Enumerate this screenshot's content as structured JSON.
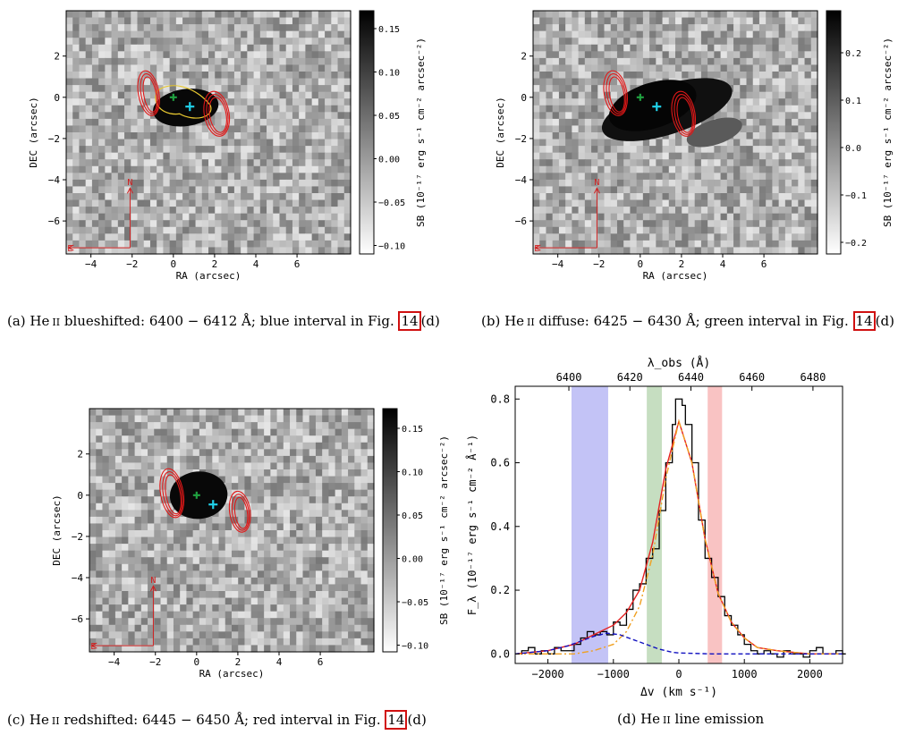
{
  "maps": [
    {
      "id": "a",
      "xlabel": "RA (arcsec)",
      "ylabel": "DEC (arcsec)",
      "xticks": [
        "−4",
        "−2",
        "0",
        "2",
        "4",
        "6"
      ],
      "yticks": [
        "2",
        "0",
        "−2",
        "−4",
        "−6"
      ],
      "cbar_ticks": [
        "0.15",
        "0.10",
        "0.05",
        "0.00",
        "−0.05",
        "−0.10"
      ],
      "cbar_label": "SB (10⁻¹⁷ erg s⁻¹ cm⁻² arcsec⁻²)",
      "compass_n": "N",
      "compass_e": "E",
      "caption": {
        "prefix": "(a) He",
        "ion": "ii",
        "text": " blueshifted: 6400 − 6412 Å; blue interval in Fig. ",
        "ref": "14",
        "suffix": "(d)"
      }
    },
    {
      "id": "b",
      "xlabel": "RA (arcsec)",
      "ylabel": "DEC (arcsec)",
      "xticks": [
        "−4",
        "−2",
        "0",
        "2",
        "4",
        "6"
      ],
      "yticks": [
        "2",
        "0",
        "−2",
        "−4",
        "−6"
      ],
      "cbar_ticks": [
        "0.2",
        "0.1",
        "0.0",
        "−0.1",
        "−0.2"
      ],
      "cbar_label": "SB (10⁻¹⁷ erg s⁻¹ cm⁻² arcsec⁻²)",
      "compass_n": "N",
      "compass_e": "E",
      "caption": {
        "prefix": "(b) He",
        "ion": "ii",
        "text": " diffuse: 6425 − 6430 Å; green interval in Fig. ",
        "ref": "14",
        "suffix": "(d)"
      }
    },
    {
      "id": "c",
      "xlabel": "RA (arcsec)",
      "ylabel": "DEC (arcsec)",
      "xticks": [
        "−4",
        "−2",
        "0",
        "2",
        "4",
        "6"
      ],
      "yticks": [
        "2",
        "0",
        "−2",
        "−4",
        "−6"
      ],
      "cbar_ticks": [
        "0.15",
        "0.10",
        "0.05",
        "0.00",
        "−0.05",
        "−0.10"
      ],
      "cbar_label": "SB (10⁻¹⁷ erg s⁻¹ cm⁻² arcsec⁻²)",
      "compass_n": "N",
      "compass_e": "E",
      "caption": {
        "prefix": "(c) He",
        "ion": "ii",
        "text": " redshifted: 6445 − 6450 Å; red interval in Fig. ",
        "ref": "14",
        "suffix": "(d)"
      }
    }
  ],
  "spectrum": {
    "caption": {
      "prefix": "(d) He",
      "ion": "ii",
      "text": " line emission"
    },
    "top_label": "λ_obs (Å)",
    "xlabel": "Δv (km s⁻¹)",
    "ylabel": "F_λ (10⁻¹⁷ erg s⁻¹ cm⁻² Å⁻¹)",
    "top_ticks": [
      "6400",
      "6420",
      "6440",
      "6460",
      "6480"
    ],
    "bottom_ticks": [
      "−2000",
      "−1000",
      "0",
      "1000",
      "2000"
    ],
    "y_ticks": [
      "0.0",
      "0.2",
      "0.4",
      "0.6",
      "0.8"
    ]
  },
  "chart_data": [
    {
      "type": "line",
      "xlim": [
        -2500,
        2500
      ],
      "ylim": [
        -0.03,
        0.84
      ],
      "bands": [
        {
          "color": "#b8b8f4",
          "x": [
            -1640,
            -1080
          ]
        },
        {
          "color": "#bcd8b6",
          "x": [
            -490,
            -260
          ]
        },
        {
          "color": "#f8b8b8",
          "x": [
            440,
            660
          ]
        }
      ],
      "series": [
        {
          "style": "step",
          "color": "#000000",
          "x": [
            -2500,
            -2400,
            -2300,
            -2200,
            -2100,
            -2000,
            -1900,
            -1800,
            -1700,
            -1600,
            -1500,
            -1400,
            -1300,
            -1200,
            -1100,
            -1000,
            -900,
            -800,
            -700,
            -600,
            -500,
            -400,
            -300,
            -200,
            -100,
            -50,
            0,
            50,
            100,
            200,
            300,
            400,
            500,
            600,
            700,
            800,
            900,
            1000,
            1100,
            1200,
            1300,
            1400,
            1500,
            1600,
            1700,
            1800,
            1900,
            2000,
            2100,
            2200,
            2300,
            2400,
            2500
          ],
          "y": [
            0.0,
            0.01,
            0.02,
            0.0,
            0.01,
            0.0,
            0.02,
            0.01,
            0.01,
            0.03,
            0.05,
            0.07,
            0.06,
            0.07,
            0.06,
            0.1,
            0.09,
            0.14,
            0.2,
            0.22,
            0.3,
            0.33,
            0.45,
            0.6,
            0.72,
            0.8,
            0.8,
            0.78,
            0.72,
            0.6,
            0.42,
            0.3,
            0.24,
            0.18,
            0.12,
            0.09,
            0.06,
            0.03,
            0.01,
            0.0,
            0.01,
            0.0,
            -0.01,
            0.01,
            0.0,
            0.0,
            -0.01,
            0.01,
            0.02,
            0.0,
            0.0,
            0.01,
            0.0
          ]
        },
        {
          "style": "solid",
          "color": "#e52020",
          "x": [
            -2500,
            -2000,
            -1600,
            -1300,
            -1000,
            -800,
            -600,
            -400,
            -200,
            0,
            200,
            400,
            600,
            800,
            1000,
            1200,
            1500,
            2000,
            2500
          ],
          "y": [
            0.0,
            0.01,
            0.03,
            0.06,
            0.09,
            0.13,
            0.2,
            0.35,
            0.58,
            0.73,
            0.6,
            0.36,
            0.19,
            0.1,
            0.05,
            0.02,
            0.01,
            0.0,
            0.0
          ]
        },
        {
          "style": "dashdot",
          "color": "#f0a020",
          "x": [
            -2500,
            -2000,
            -1600,
            -1300,
            -1000,
            -800,
            -600,
            -400,
            -200,
            0,
            200,
            400,
            600,
            800,
            1000,
            1200,
            1500,
            2000,
            2500
          ],
          "y": [
            0.0,
            0.0,
            0.0,
            0.01,
            0.03,
            0.07,
            0.15,
            0.31,
            0.55,
            0.73,
            0.6,
            0.36,
            0.19,
            0.1,
            0.05,
            0.02,
            0.01,
            0.0,
            0.0
          ]
        },
        {
          "style": "dashed",
          "color": "#1010c0",
          "x": [
            -2500,
            -2000,
            -1700,
            -1500,
            -1300,
            -1100,
            -900,
            -700,
            -500,
            -300,
            -100,
            0,
            500,
            1000,
            2500
          ],
          "y": [
            0.0,
            0.01,
            0.025,
            0.04,
            0.055,
            0.065,
            0.06,
            0.045,
            0.03,
            0.015,
            0.005,
            0.003,
            0.0,
            0.0,
            0.0
          ]
        }
      ]
    }
  ]
}
